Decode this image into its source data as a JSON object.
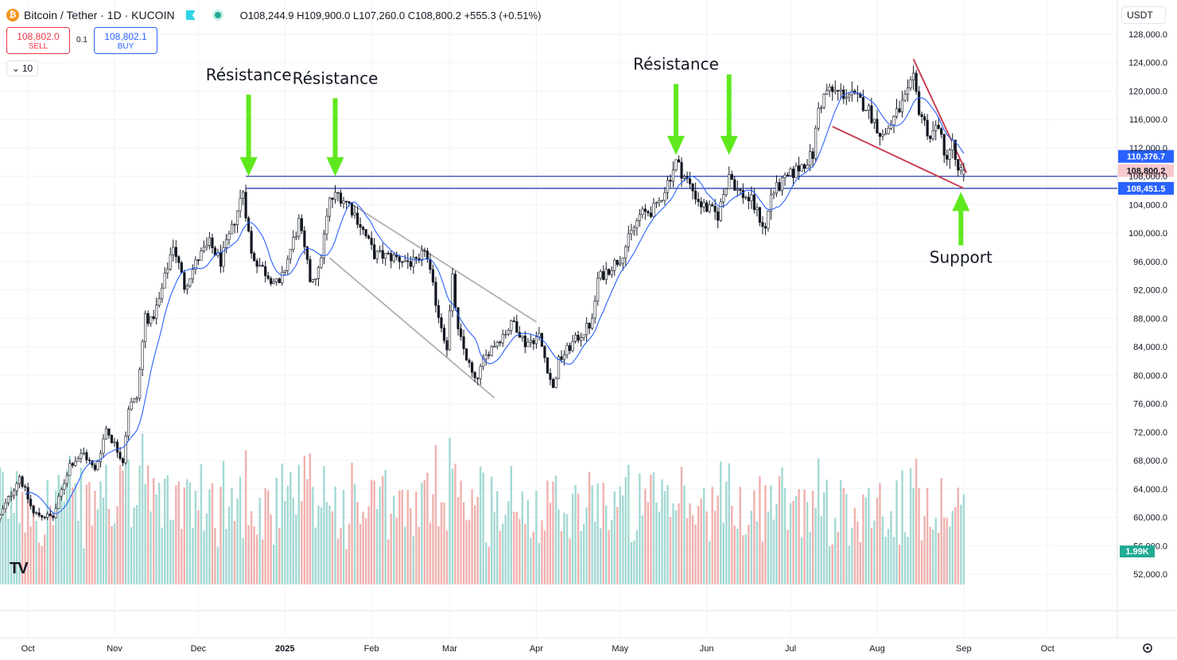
{
  "header": {
    "symbol": "Bitcoin / Tether · 1D · KUCOIN",
    "open": "O108,244.9",
    "high": "H109,900.0",
    "low": "L107,260.0",
    "close": "C108,800.2",
    "change": "+555.3 (+0.51%)"
  },
  "trade": {
    "sell_price": "108,802.0",
    "sell_label": "SELL",
    "spread": "0.1",
    "buy_price": "108,802.1",
    "buy_label": "BUY"
  },
  "indicators_toggle": "10",
  "currency": "USDT",
  "colors": {
    "up": "#26a69a",
    "down": "#ef5350",
    "vol_up": "#a3d9d3",
    "vol_down": "#f0b1ae",
    "ma": "#2962ff",
    "level_line": "#3f51b5",
    "wedge": "#c94055",
    "channel": "#b0b0b0",
    "arrow": "#5fe81e"
  },
  "chart_data": {
    "type": "candlestick",
    "price_ticks": [
      128000,
      124000,
      120000,
      116000,
      112000,
      108000,
      104000,
      100000,
      96000,
      92000,
      88000,
      84000,
      80000,
      76000,
      72000,
      68000,
      64000,
      60000,
      56000,
      52000
    ],
    "price_tick_labels": [
      "128,000.0",
      "124,000.0",
      "120,000.0",
      "116,000.0",
      "112,000.0",
      "108,000.0",
      "104,000.0",
      "100,000.0",
      "96,000.0",
      "92,000.0",
      "88,000.0",
      "84,000.0",
      "80,000.0",
      "76,000.0",
      "72,000.0",
      "68,000.0",
      "64,000.0",
      "60,000.0",
      "56,000.0",
      "52,000.0"
    ],
    "ylim": [
      50000,
      130000
    ],
    "time_labels": [
      {
        "label": "Oct",
        "date": "2024-10-01"
      },
      {
        "label": "Nov",
        "date": "2024-11-01"
      },
      {
        "label": "Dec",
        "date": "2024-12-01"
      },
      {
        "label": "2025",
        "date": "2025-01-01"
      },
      {
        "label": "Feb",
        "date": "2025-02-01"
      },
      {
        "label": "Mar",
        "date": "2025-03-01"
      },
      {
        "label": "Apr",
        "date": "2025-04-01"
      },
      {
        "label": "May",
        "date": "2025-05-01"
      },
      {
        "label": "Jun",
        "date": "2025-06-01"
      },
      {
        "label": "Jul",
        "date": "2025-07-01"
      },
      {
        "label": "Aug",
        "date": "2025-08-01"
      },
      {
        "label": "Sep",
        "date": "2025-09-01"
      },
      {
        "label": "Oct",
        "date": "2025-10-01"
      }
    ],
    "xlim": [
      "2024-09-21",
      "2025-10-26"
    ],
    "price_anchors": [
      [
        "2024-09-21",
        60200
      ],
      [
        "2024-09-28",
        65800
      ],
      [
        "2024-10-03",
        60500
      ],
      [
        "2024-10-10",
        60000
      ],
      [
        "2024-10-16",
        67500
      ],
      [
        "2024-10-21",
        69000
      ],
      [
        "2024-10-25",
        66500
      ],
      [
        "2024-10-29",
        72500
      ],
      [
        "2024-11-04",
        68000
      ],
      [
        "2024-11-06",
        75500
      ],
      [
        "2024-11-09",
        76800
      ],
      [
        "2024-11-12",
        88500
      ],
      [
        "2024-11-14",
        87500
      ],
      [
        "2024-11-17",
        90500
      ],
      [
        "2024-11-22",
        98500
      ],
      [
        "2024-11-26",
        92500
      ],
      [
        "2024-12-01",
        96500
      ],
      [
        "2024-12-05",
        98500
      ],
      [
        "2024-12-09",
        96000
      ],
      [
        "2024-12-13",
        100500
      ],
      [
        "2024-12-17",
        106000
      ],
      [
        "2024-12-20",
        97000
      ],
      [
        "2024-12-25",
        94500
      ],
      [
        "2024-12-30",
        92500
      ],
      [
        "2025-01-06",
        101500
      ],
      [
        "2025-01-10",
        93500
      ],
      [
        "2025-01-13",
        94500
      ],
      [
        "2025-01-17",
        104500
      ],
      [
        "2025-01-20",
        105500
      ],
      [
        "2025-01-24",
        104000
      ],
      [
        "2025-01-27",
        102000
      ],
      [
        "2025-02-02",
        97000
      ],
      [
        "2025-02-10",
        96500
      ],
      [
        "2025-02-18",
        95500
      ],
      [
        "2025-02-20",
        98000
      ],
      [
        "2025-02-25",
        88500
      ],
      [
        "2025-02-28",
        84000
      ],
      [
        "2025-03-02",
        93500
      ],
      [
        "2025-03-04",
        86000
      ],
      [
        "2025-03-10",
        79000
      ],
      [
        "2025-03-15",
        83500
      ],
      [
        "2025-03-24",
        87500
      ],
      [
        "2025-03-28",
        84500
      ],
      [
        "2025-04-02",
        85500
      ],
      [
        "2025-04-07",
        78000
      ],
      [
        "2025-04-09",
        82000
      ],
      [
        "2025-04-14",
        84500
      ],
      [
        "2025-04-21",
        87500
      ],
      [
        "2025-04-23",
        93500
      ],
      [
        "2025-05-01",
        96500
      ],
      [
        "2025-05-08",
        102500
      ],
      [
        "2025-05-14",
        103500
      ],
      [
        "2025-05-21",
        110000
      ],
      [
        "2025-05-24",
        108000
      ],
      [
        "2025-05-30",
        104000
      ],
      [
        "2025-06-05",
        102500
      ],
      [
        "2025-06-09",
        108500
      ],
      [
        "2025-06-12",
        106000
      ],
      [
        "2025-06-17",
        104500
      ],
      [
        "2025-06-22",
        100500
      ],
      [
        "2025-06-24",
        105500
      ],
      [
        "2025-07-02",
        108500
      ],
      [
        "2025-07-09",
        111000
      ],
      [
        "2025-07-11",
        117500
      ],
      [
        "2025-07-14",
        120000
      ],
      [
        "2025-07-22",
        119500
      ],
      [
        "2025-07-28",
        118000
      ],
      [
        "2025-08-03",
        113500
      ],
      [
        "2025-08-08",
        116800
      ],
      [
        "2025-08-12",
        119500
      ],
      [
        "2025-08-14",
        121500
      ],
      [
        "2025-08-16",
        117500
      ],
      [
        "2025-08-20",
        113500
      ],
      [
        "2025-08-23",
        115500
      ],
      [
        "2025-08-25",
        110500
      ],
      [
        "2025-08-28",
        112500
      ],
      [
        "2025-08-30",
        108300
      ],
      [
        "2025-09-01",
        108800
      ]
    ],
    "volume_axis_label": "1.99K",
    "levels": [
      {
        "name": "resistance-level",
        "value": 108000,
        "label": "110,376.7",
        "label_value": 110800,
        "label_bg": "#2962ff"
      },
      {
        "name": "current-price",
        "value": null,
        "label": "108,800.2",
        "label_value": 108800,
        "label_bg": "#f7c9cc",
        "label_color": "#131722"
      },
      {
        "name": "support-level",
        "value": 106300,
        "label": "108,451.5",
        "label_value": 106300,
        "label_bg": "#2962ff"
      }
    ],
    "annotations": [
      {
        "text": "Résistance",
        "date": "2024-12-19",
        "value": 121500,
        "arrow_tip": 108000
      },
      {
        "text": "Résistance",
        "date": "2025-01-19",
        "value": 121000,
        "arrow_tip": 108000
      },
      {
        "text": "Résistance",
        "date": "2025-05-21",
        "value": 123000,
        "arrow_tip": 111000
      },
      {
        "text": "",
        "date": "2025-06-09",
        "value": 123000,
        "arrow_tip": 111000
      },
      {
        "text": "Support",
        "date": "2025-08-31",
        "value": 95800,
        "arrow_tip": 105800,
        "arrow_up": true
      }
    ],
    "trendlines": [
      {
        "name": "channel-upper",
        "color": "#b0b0b0",
        "points": [
          [
            "2025-01-24",
            104300
          ],
          [
            "2025-04-01",
            87500
          ]
        ]
      },
      {
        "name": "channel-lower",
        "color": "#b0b0b0",
        "points": [
          [
            "2025-01-17",
            96500
          ],
          [
            "2025-03-17",
            76800
          ]
        ]
      },
      {
        "name": "wedge-upper",
        "color": "#c94055",
        "points": [
          [
            "2025-08-14",
            124500
          ],
          [
            "2025-09-02",
            108500
          ]
        ]
      },
      {
        "name": "wedge-lower",
        "color": "#c94055",
        "points": [
          [
            "2025-07-16",
            115000
          ],
          [
            "2025-09-01",
            106300
          ]
        ]
      }
    ]
  }
}
